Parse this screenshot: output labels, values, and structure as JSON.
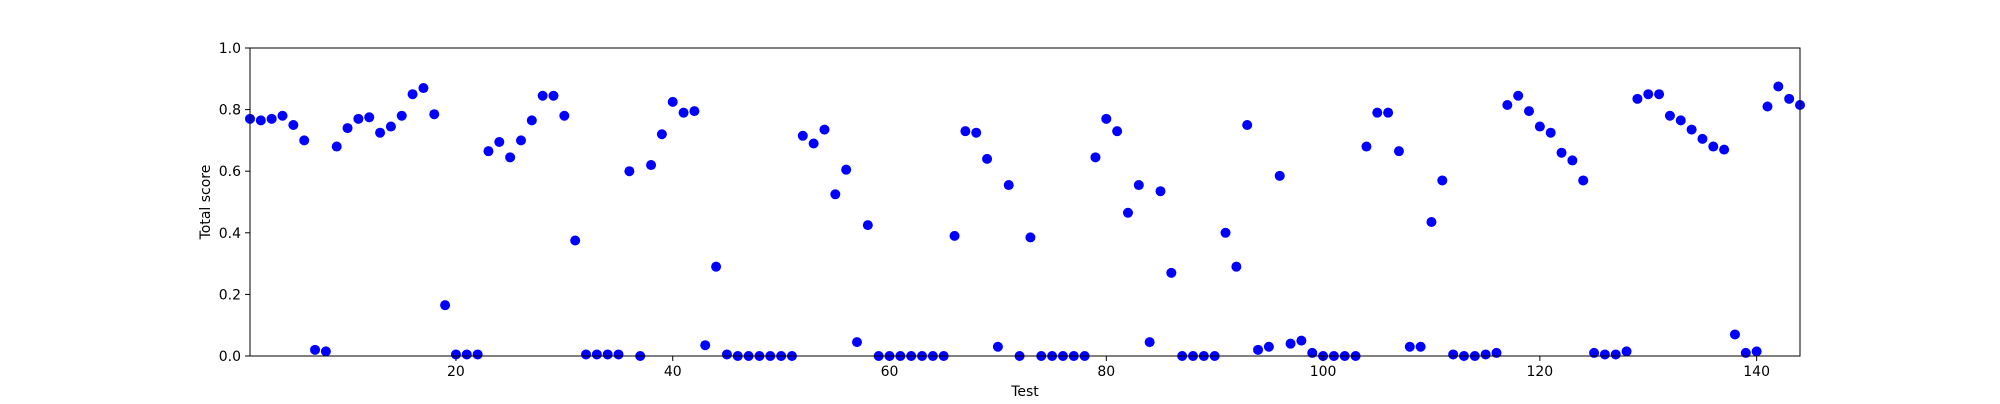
{
  "colors": {
    "marker": "#0000ff",
    "axis": "#000000",
    "background": "#ffffff"
  },
  "chart_data": {
    "type": "scatter",
    "title": "",
    "xlabel": "Test",
    "ylabel": "Total score",
    "xlim": [
      1,
      144
    ],
    "ylim": [
      0.0,
      1.0
    ],
    "xticks": [
      20,
      40,
      60,
      80,
      100,
      120,
      140
    ],
    "yticks": [
      0.0,
      0.2,
      0.4,
      0.6,
      0.8,
      1.0
    ],
    "xtick_labels": [
      "20",
      "40",
      "60",
      "80",
      "100",
      "120",
      "140"
    ],
    "ytick_labels": [
      "0.0",
      "0.2",
      "0.4",
      "0.6",
      "0.8",
      "1.0"
    ],
    "grid": false,
    "legend": false,
    "series": [
      {
        "color": "#0000ff",
        "x": [
          1,
          2,
          3,
          4,
          5,
          6,
          7,
          8,
          9,
          10,
          11,
          12,
          13,
          14,
          15,
          16,
          17,
          18,
          19,
          20,
          21,
          22,
          23,
          24,
          25,
          26,
          27,
          28,
          29,
          30,
          31,
          32,
          33,
          34,
          35,
          36,
          37,
          38,
          39,
          40,
          41,
          42,
          43,
          44,
          45,
          46,
          47,
          48,
          49,
          50,
          51,
          52,
          53,
          54,
          55,
          56,
          57,
          58,
          59,
          60,
          61,
          62,
          63,
          64,
          65,
          66,
          67,
          68,
          69,
          70,
          71,
          72,
          73,
          74,
          75,
          76,
          77,
          78,
          79,
          80,
          81,
          82,
          83,
          84,
          85,
          86,
          87,
          88,
          89,
          90,
          91,
          92,
          93,
          94,
          95,
          96,
          97,
          98,
          99,
          100,
          101,
          102,
          103,
          104,
          105,
          106,
          107,
          108,
          109,
          110,
          111,
          112,
          113,
          114,
          115,
          116,
          117,
          118,
          119,
          120,
          121,
          122,
          123,
          124,
          125,
          126,
          127,
          128,
          129,
          130,
          131,
          132,
          133,
          134,
          135,
          136,
          137,
          138,
          139,
          140,
          141,
          142,
          143,
          144
        ],
        "y": [
          0.77,
          0.765,
          0.77,
          0.78,
          0.75,
          0.7,
          0.02,
          0.015,
          0.68,
          0.74,
          0.77,
          0.775,
          0.725,
          0.745,
          0.78,
          0.85,
          0.87,
          0.785,
          0.165,
          0.005,
          0.005,
          0.005,
          0.665,
          0.695,
          0.645,
          0.7,
          0.765,
          0.845,
          0.845,
          0.78,
          0.375,
          0.005,
          0.005,
          0.005,
          0.005,
          0.6,
          0.0,
          0.62,
          0.72,
          0.825,
          0.79,
          0.795,
          0.035,
          0.29,
          0.005,
          0.0,
          0.0,
          0.0,
          0.0,
          0.0,
          0.0,
          0.715,
          0.69,
          0.735,
          0.525,
          0.605,
          0.045,
          0.425,
          0.0,
          0.0,
          0.0,
          0.0,
          0.0,
          0.0,
          0.0,
          0.39,
          0.73,
          0.725,
          0.64,
          0.03,
          0.555,
          0.0,
          0.385,
          0.0,
          0.0,
          0.0,
          0.0,
          0.0,
          0.645,
          0.77,
          0.73,
          0.465,
          0.555,
          0.045,
          0.535,
          0.27,
          0.0,
          0.0,
          0.0,
          0.0,
          0.4,
          0.29,
          0.75,
          0.02,
          0.03,
          0.585,
          0.04,
          0.05,
          0.01,
          0.0,
          0.0,
          0.0,
          0.0,
          0.68,
          0.79,
          0.79,
          0.665,
          0.03,
          0.03,
          0.435,
          0.57,
          0.005,
          0.0,
          0.0,
          0.005,
          0.01,
          0.815,
          0.845,
          0.795,
          0.745,
          0.725,
          0.66,
          0.635,
          0.57,
          0.01,
          0.005,
          0.005,
          0.015,
          0.835,
          0.85,
          0.85,
          0.78,
          0.765,
          0.735,
          0.705,
          0.68,
          0.67,
          0.07,
          0.01,
          0.015,
          0.81,
          0.875,
          0.835,
          0.815
        ]
      }
    ]
  }
}
